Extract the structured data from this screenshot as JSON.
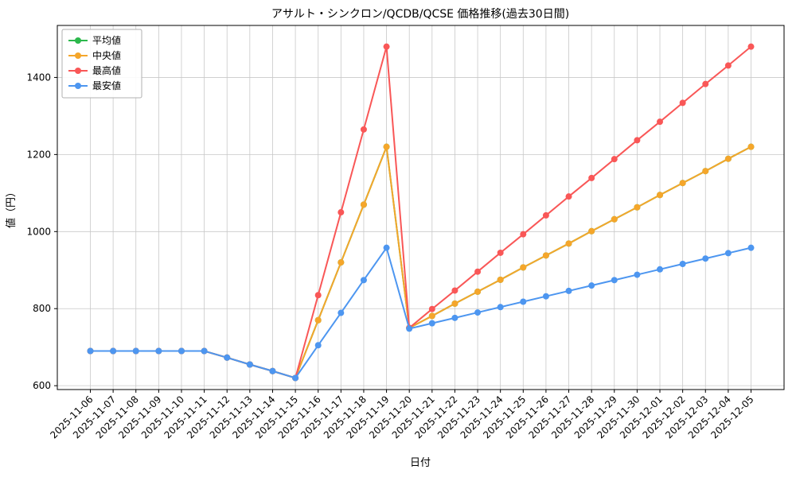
{
  "chart_data": {
    "type": "line",
    "title": "アサルト・シンクロン/QCDB/QCSE 価格推移(過去30日間)",
    "xlabel": "日付",
    "ylabel": "値（円）",
    "grid": true,
    "legend_position": "upper left",
    "ylim": [
      590,
      1535
    ],
    "yticks": [
      600,
      800,
      1000,
      1200,
      1400
    ],
    "x": [
      "2025-11-06",
      "2025-11-07",
      "2025-11-08",
      "2025-11-09",
      "2025-11-10",
      "2025-11-11",
      "2025-11-12",
      "2025-11-13",
      "2025-11-14",
      "2025-11-15",
      "2025-11-16",
      "2025-11-17",
      "2025-11-18",
      "2025-11-19",
      "2025-11-20",
      "2025-11-21",
      "2025-11-22",
      "2025-11-23",
      "2025-11-24",
      "2025-11-25",
      "2025-11-26",
      "2025-11-27",
      "2025-11-28",
      "2025-11-29",
      "2025-11-30",
      "2025-12-01",
      "2025-12-02",
      "2025-12-03",
      "2025-12-04",
      "2025-12-05"
    ],
    "series": [
      {
        "key": "average",
        "name": "平均値",
        "color": "#2cb84c",
        "values": [
          690,
          690,
          690,
          690,
          690,
          690,
          673,
          655,
          638,
          620,
          770,
          920,
          1070,
          1220,
          750,
          781,
          813,
          844,
          875,
          907,
          938,
          969,
          1001,
          1032,
          1063,
          1095,
          1126,
          1157,
          1189,
          1220
        ]
      },
      {
        "key": "median",
        "name": "中央値",
        "color": "#f5a62b",
        "values": [
          690,
          690,
          690,
          690,
          690,
          690,
          673,
          655,
          638,
          620,
          770,
          920,
          1070,
          1220,
          750,
          781,
          813,
          844,
          875,
          907,
          938,
          969,
          1001,
          1032,
          1063,
          1095,
          1126,
          1157,
          1189,
          1220
        ]
      },
      {
        "key": "max",
        "name": "最高値",
        "color": "#f95757",
        "values": [
          690,
          690,
          690,
          690,
          690,
          690,
          673,
          655,
          638,
          620,
          835,
          1050,
          1265,
          1480,
          750,
          799,
          847,
          896,
          945,
          993,
          1042,
          1091,
          1139,
          1188,
          1237,
          1285,
          1334,
          1383,
          1431,
          1480
        ]
      },
      {
        "key": "min",
        "name": "最安値",
        "color": "#4d96f0",
        "values": [
          690,
          690,
          690,
          690,
          690,
          690,
          673,
          655,
          638,
          620,
          705,
          789,
          874,
          958,
          748,
          762,
          776,
          790,
          804,
          818,
          832,
          846,
          860,
          874,
          888,
          902,
          916,
          930,
          944,
          958
        ]
      }
    ]
  }
}
